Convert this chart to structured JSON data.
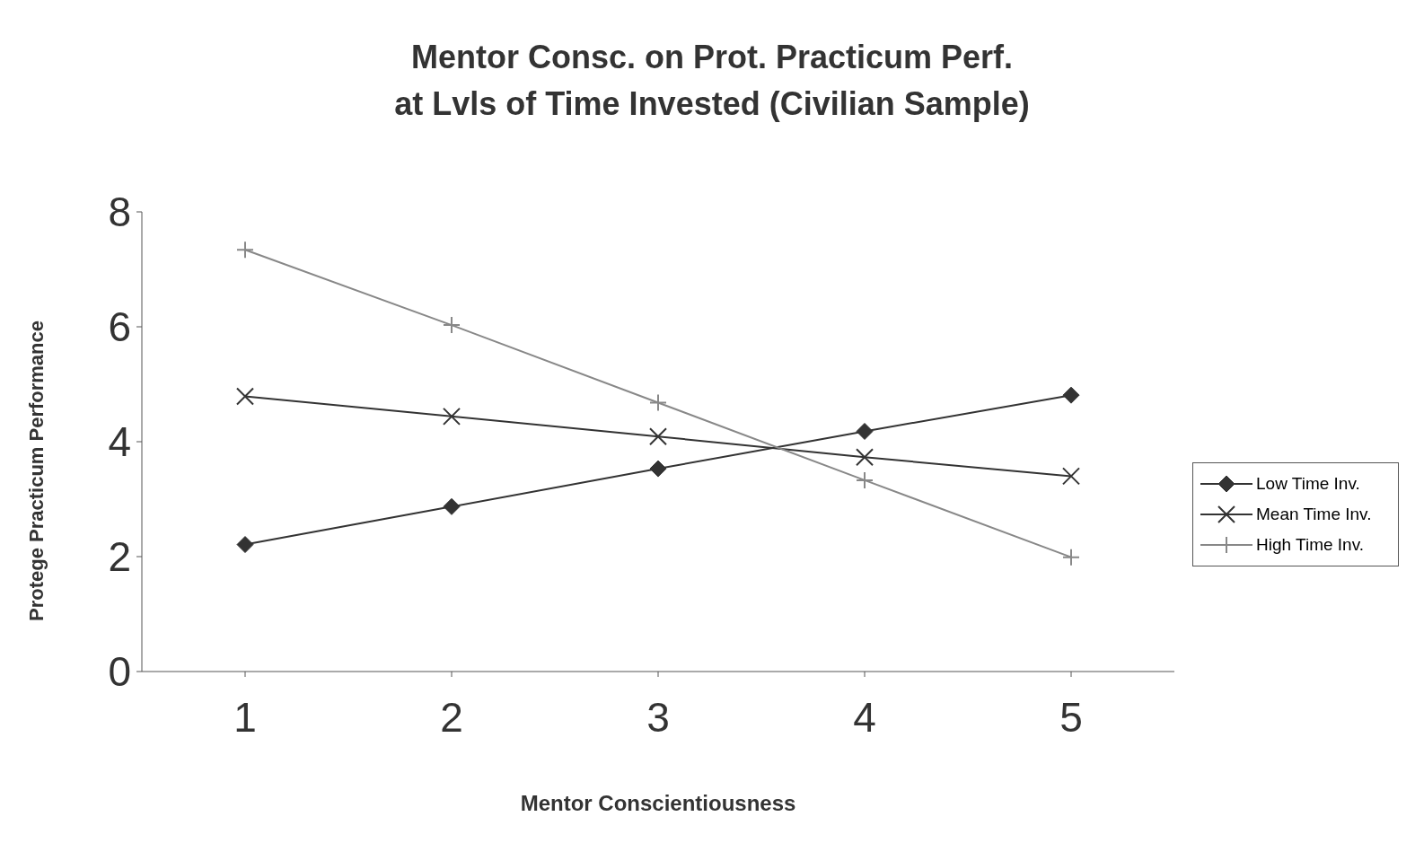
{
  "chart_data": {
    "type": "line",
    "title": "Mentor Consc. on Prot. Practicum Perf.\nat Lvls of Time Invested (Civilian Sample)",
    "xlabel": "Mentor Conscientiousness",
    "ylabel": "Protege Practicum Performance",
    "categories": [
      "1",
      "2",
      "3",
      "4",
      "5"
    ],
    "series": [
      {
        "name": "Low Time Inv.",
        "color": "#333333",
        "marker": "diamond",
        "values": [
          2.21,
          2.87,
          3.53,
          4.18,
          4.81
        ]
      },
      {
        "name": "Mean Time Inv.",
        "color": "#333333",
        "marker": "cross",
        "values": [
          4.79,
          4.44,
          4.09,
          3.73,
          3.4
        ]
      },
      {
        "name": "High Time Inv.",
        "color": "#888888",
        "marker": "plus",
        "values": [
          7.34,
          6.03,
          4.68,
          3.33,
          1.99
        ]
      }
    ],
    "ylim": [
      0,
      8
    ],
    "yticks": [
      0,
      2,
      4,
      6,
      8
    ],
    "grid": false,
    "legend": "right",
    "line_style": "solid"
  }
}
